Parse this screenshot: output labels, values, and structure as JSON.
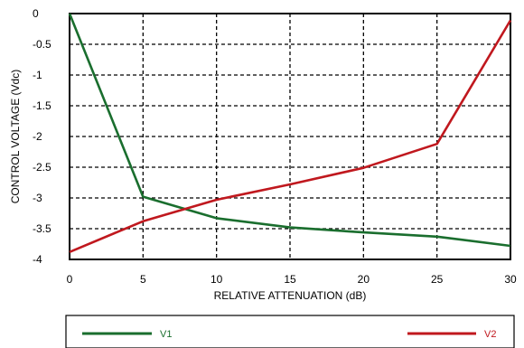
{
  "chart_data": {
    "type": "line",
    "xlabel": "RELATIVE ATTENUATION (dB)",
    "ylabel": "CONTROL VOLTAGE (Vdc)",
    "xlim": [
      0,
      30
    ],
    "ylim": [
      -4,
      0
    ],
    "x_ticks": [
      0,
      5,
      10,
      15,
      20,
      25,
      30
    ],
    "y_ticks": [
      0,
      -0.5,
      -1,
      -1.5,
      -2,
      -2.5,
      -3,
      -3.5,
      -4
    ],
    "x_tick_labels": [
      "0",
      "5",
      "10",
      "15",
      "20",
      "25",
      "30"
    ],
    "y_tick_labels": [
      "0",
      "-0.5",
      "-1",
      "-1.5",
      "-2",
      "-2.5",
      "-3",
      "-3.5",
      "-4"
    ],
    "grid": true,
    "legend_position": "bottom",
    "series": [
      {
        "name": "V1",
        "color": "#1a6e2e",
        "x": [
          0,
          5,
          10,
          15,
          20,
          25,
          30
        ],
        "y": [
          0,
          -2.98,
          -3.33,
          -3.48,
          -3.56,
          -3.63,
          -3.78
        ]
      },
      {
        "name": "V2",
        "color": "#c0181e",
        "x": [
          0,
          5,
          10,
          15,
          20,
          25,
          30
        ],
        "y": [
          -3.88,
          -3.38,
          -3.03,
          -2.78,
          -2.51,
          -2.12,
          -0.11
        ]
      }
    ]
  }
}
